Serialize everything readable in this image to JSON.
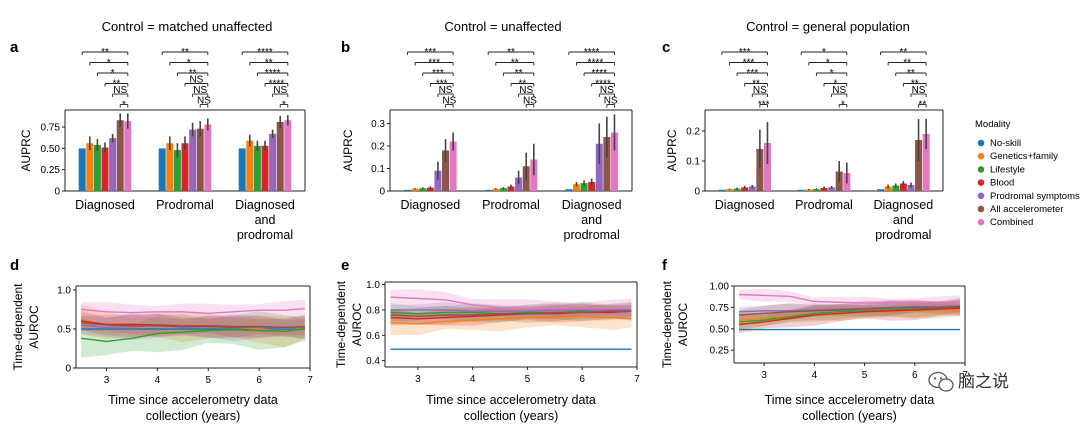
{
  "watermark": "脑之说",
  "chart_data": [
    {
      "panel": "a",
      "type": "bar",
      "title": "Control = matched unaffected",
      "ylabel": "AUPRC",
      "ylim": [
        0,
        0.95
      ],
      "yticks": [
        0,
        0.25,
        0.5,
        0.75
      ],
      "yticklabels": [
        "0",
        "0.25",
        "0.50",
        "0.75"
      ],
      "categories": [
        "Diagnosed",
        "Prodromal",
        "Diagnosed and prodromal"
      ],
      "category_lines": [
        [
          "Diagnosed"
        ],
        [
          "Prodromal"
        ],
        [
          "Diagnosed",
          "and",
          "prodromal"
        ]
      ],
      "series": [
        {
          "name": "No-skill",
          "values": [
            0.5,
            0.5,
            0.5
          ],
          "errors": [
            0,
            0,
            0
          ]
        },
        {
          "name": "Genetics+family",
          "values": [
            0.56,
            0.56,
            0.59
          ],
          "errors": [
            0.08,
            0.08,
            0.07
          ]
        },
        {
          "name": "Lifestyle",
          "values": [
            0.54,
            0.48,
            0.53
          ],
          "errors": [
            0.07,
            0.08,
            0.06
          ]
        },
        {
          "name": "Blood",
          "values": [
            0.51,
            0.56,
            0.53
          ],
          "errors": [
            0.06,
            0.08,
            0.06
          ]
        },
        {
          "name": "Prodromal symptoms",
          "values": [
            0.62,
            0.72,
            0.67
          ],
          "errors": [
            0.05,
            0.08,
            0.05
          ]
        },
        {
          "name": "All accelerometer",
          "values": [
            0.83,
            0.73,
            0.81
          ],
          "errors": [
            0.08,
            0.09,
            0.07
          ]
        },
        {
          "name": "Combined",
          "values": [
            0.82,
            0.78,
            0.83
          ],
          "errors": [
            0.09,
            0.07,
            0.06
          ]
        }
      ],
      "significance": [
        [
          "**",
          "*",
          "*",
          "**",
          "NS",
          "*"
        ],
        [
          "**",
          "*",
          "**",
          "NS",
          "NS",
          "NS"
        ],
        [
          "****",
          "**",
          "****",
          "****",
          "NS",
          "*"
        ]
      ]
    },
    {
      "panel": "b",
      "type": "bar",
      "title": "Control = unaffected",
      "ylabel": "AUPRC",
      "ylim": [
        0,
        0.36
      ],
      "yticks": [
        0,
        0.1,
        0.2,
        0.3
      ],
      "yticklabels": [
        "0",
        "0.1",
        "0.2",
        "0.3"
      ],
      "categories": [
        "Diagnosed",
        "Prodromal",
        "Diagnosed and prodromal"
      ],
      "category_lines": [
        [
          "Diagnosed"
        ],
        [
          "Prodromal"
        ],
        [
          "Diagnosed",
          "and",
          "prodromal"
        ]
      ],
      "series": [
        {
          "name": "No-skill",
          "values": [
            0.005,
            0.005,
            0.008
          ],
          "errors": [
            0,
            0,
            0
          ]
        },
        {
          "name": "Genetics+family",
          "values": [
            0.01,
            0.01,
            0.03
          ],
          "errors": [
            0.003,
            0.003,
            0.01
          ]
        },
        {
          "name": "Lifestyle",
          "values": [
            0.012,
            0.013,
            0.035
          ],
          "errors": [
            0.004,
            0.004,
            0.012
          ]
        },
        {
          "name": "Blood",
          "values": [
            0.015,
            0.02,
            0.04
          ],
          "errors": [
            0.006,
            0.008,
            0.015
          ]
        },
        {
          "name": "Prodromal symptoms",
          "values": [
            0.09,
            0.06,
            0.21
          ],
          "errors": [
            0.04,
            0.03,
            0.09
          ]
        },
        {
          "name": "All accelerometer",
          "values": [
            0.18,
            0.11,
            0.24
          ],
          "errors": [
            0.05,
            0.06,
            0.09
          ]
        },
        {
          "name": "Combined",
          "values": [
            0.22,
            0.14,
            0.26
          ],
          "errors": [
            0.04,
            0.07,
            0.08
          ]
        }
      ],
      "significance": [
        [
          "***",
          "***",
          "***",
          "***",
          "NS",
          "NS"
        ],
        [
          "**",
          "**",
          "**",
          "**",
          "NS",
          "NS"
        ],
        [
          "****",
          "****",
          "****",
          "****",
          "NS",
          "NS"
        ]
      ]
    },
    {
      "panel": "c",
      "type": "bar",
      "title": "Control = general population",
      "ylabel": "AUPRC",
      "ylim": [
        0,
        0.27
      ],
      "yticks": [
        0,
        0.1,
        0.2
      ],
      "yticklabels": [
        "0",
        "0.1",
        "0.2"
      ],
      "categories": [
        "Diagnosed",
        "Prodromal",
        "Diagnosed and prodromal"
      ],
      "category_lines": [
        [
          "Diagnosed"
        ],
        [
          "Prodromal"
        ],
        [
          "Diagnosed",
          "and",
          "prodromal"
        ]
      ],
      "series": [
        {
          "name": "No-skill",
          "values": [
            0.004,
            0.004,
            0.006
          ],
          "errors": [
            0,
            0,
            0
          ]
        },
        {
          "name": "Genetics+family",
          "values": [
            0.006,
            0.005,
            0.015
          ],
          "errors": [
            0.002,
            0.002,
            0.006
          ]
        },
        {
          "name": "Lifestyle",
          "values": [
            0.008,
            0.006,
            0.018
          ],
          "errors": [
            0.003,
            0.003,
            0.007
          ]
        },
        {
          "name": "Blood",
          "values": [
            0.012,
            0.01,
            0.025
          ],
          "errors": [
            0.005,
            0.005,
            0.008
          ]
        },
        {
          "name": "Prodromal symptoms",
          "values": [
            0.015,
            0.012,
            0.02
          ],
          "errors": [
            0.005,
            0.005,
            0.008
          ]
        },
        {
          "name": "All accelerometer",
          "values": [
            0.14,
            0.065,
            0.17
          ],
          "errors": [
            0.065,
            0.035,
            0.07
          ]
        },
        {
          "name": "Combined",
          "values": [
            0.16,
            0.06,
            0.19
          ],
          "errors": [
            0.07,
            0.035,
            0.05
          ]
        }
      ],
      "significance": [
        [
          "***",
          "***",
          "***",
          "**",
          "NS",
          "***"
        ],
        [
          "*",
          "*",
          "*",
          "*",
          "NS",
          "*"
        ],
        [
          "**",
          "**",
          "**",
          "**",
          "NS",
          "**"
        ]
      ]
    },
    {
      "panel": "d",
      "type": "line",
      "xlabel": "Time since accelerometry data collection (years)",
      "xlabel_lines": [
        "Time since accelerometry data",
        "collection (years)"
      ],
      "ylabel": "Time-dependent AUROC",
      "ylabel_lines": [
        "Time-dependent",
        "AUROC"
      ],
      "xlim": [
        2.4,
        7.0
      ],
      "ylim": [
        0,
        1.05
      ],
      "xticks": [
        3,
        4,
        5,
        6,
        7
      ],
      "yticks": [
        0,
        0.5,
        1.0
      ],
      "yticklabels": [
        "0",
        "0.5",
        "1.0"
      ],
      "x": [
        2.5,
        3.0,
        3.5,
        4.0,
        4.5,
        5.0,
        5.5,
        6.0,
        6.5,
        6.9
      ],
      "series": [
        {
          "name": "No-skill",
          "values": [
            0.5,
            0.5,
            0.5,
            0.5,
            0.5,
            0.5,
            0.5,
            0.5,
            0.5,
            0.5
          ],
          "band": 0
        },
        {
          "name": "Genetics+family",
          "values": [
            0.62,
            0.55,
            0.52,
            0.55,
            0.53,
            0.54,
            0.52,
            0.5,
            0.46,
            0.52
          ],
          "band": 0.16
        },
        {
          "name": "Lifestyle",
          "values": [
            0.38,
            0.34,
            0.38,
            0.44,
            0.46,
            0.48,
            0.49,
            0.48,
            0.47,
            0.5
          ],
          "band": 0.2
        },
        {
          "name": "Blood",
          "values": [
            0.6,
            0.56,
            0.56,
            0.55,
            0.54,
            0.54,
            0.53,
            0.53,
            0.52,
            0.52
          ],
          "band": 0.12
        },
        {
          "name": "Prodromal symptoms",
          "values": [
            0.55,
            0.52,
            0.53,
            0.54,
            0.52,
            0.53,
            0.52,
            0.52,
            0.51,
            0.52
          ],
          "band": 0.14
        },
        {
          "name": "All accelerometer",
          "values": [
            0.58,
            0.55,
            0.54,
            0.54,
            0.53,
            0.53,
            0.52,
            0.53,
            0.52,
            0.53
          ],
          "band": 0.12
        },
        {
          "name": "Combined",
          "values": [
            0.75,
            0.72,
            0.71,
            0.72,
            0.72,
            0.7,
            0.72,
            0.74,
            0.74,
            0.76
          ],
          "band": 0.1
        }
      ]
    },
    {
      "panel": "e",
      "type": "line",
      "xlabel": "Time since accelerometry data collection (years)",
      "xlabel_lines": [
        "Time since accelerometry data",
        "collection (years)"
      ],
      "ylabel": "Time-dependent AUROC",
      "ylabel_lines": [
        "Time-dependent",
        "AUROC"
      ],
      "xlim": [
        2.4,
        7.0
      ],
      "ylim": [
        0.35,
        1.02
      ],
      "xticks": [
        3,
        4,
        5,
        6,
        7
      ],
      "yticks": [
        0.4,
        0.6,
        0.8,
        1.0
      ],
      "yticklabels": [
        "0.4",
        "0.6",
        "0.8",
        "1.0"
      ],
      "x": [
        2.5,
        3.0,
        3.5,
        4.0,
        4.5,
        5.0,
        5.5,
        6.0,
        6.5,
        6.9
      ],
      "series": [
        {
          "name": "No-skill",
          "values": [
            0.49,
            0.49,
            0.49,
            0.49,
            0.49,
            0.49,
            0.49,
            0.49,
            0.49,
            0.49
          ],
          "band": 0
        },
        {
          "name": "Genetics+family",
          "values": [
            0.7,
            0.69,
            0.71,
            0.72,
            0.73,
            0.74,
            0.74,
            0.75,
            0.74,
            0.73
          ],
          "band": 0.08
        },
        {
          "name": "Lifestyle",
          "values": [
            0.78,
            0.77,
            0.78,
            0.78,
            0.77,
            0.78,
            0.78,
            0.79,
            0.78,
            0.79
          ],
          "band": 0.06
        },
        {
          "name": "Blood",
          "values": [
            0.74,
            0.73,
            0.74,
            0.75,
            0.76,
            0.77,
            0.77,
            0.78,
            0.78,
            0.79
          ],
          "band": 0.06
        },
        {
          "name": "Prodromal symptoms",
          "values": [
            0.8,
            0.8,
            0.8,
            0.79,
            0.79,
            0.79,
            0.8,
            0.8,
            0.8,
            0.8
          ],
          "band": 0.05
        },
        {
          "name": "All accelerometer",
          "values": [
            0.76,
            0.75,
            0.76,
            0.76,
            0.77,
            0.77,
            0.78,
            0.78,
            0.79,
            0.79
          ],
          "band": 0.06
        },
        {
          "name": "Combined",
          "values": [
            0.9,
            0.89,
            0.88,
            0.84,
            0.82,
            0.81,
            0.81,
            0.81,
            0.81,
            0.82
          ],
          "band": 0.06
        }
      ]
    },
    {
      "panel": "f",
      "type": "line",
      "xlabel": "Time since accelerometry data collection (years)",
      "xlabel_lines": [
        "Time since accelerometry data",
        "collection (years)"
      ],
      "ylabel": "Time-dependent AUROC",
      "ylabel_lines": [
        "Time-dependent",
        "AUROC"
      ],
      "xlim": [
        2.4,
        7.0
      ],
      "ylim": [
        0.1,
        1.0
      ],
      "xticks": [
        3,
        4,
        5,
        6,
        7
      ],
      "yticks": [
        0.25,
        0.5,
        0.75,
        1.0
      ],
      "yticklabels": [
        "0.25",
        "0.50",
        "0.75",
        "1.00"
      ],
      "x": [
        2.5,
        3.0,
        3.5,
        4.0,
        4.5,
        5.0,
        5.5,
        6.0,
        6.5,
        6.9
      ],
      "series": [
        {
          "name": "No-skill",
          "values": [
            0.49,
            0.49,
            0.49,
            0.49,
            0.49,
            0.49,
            0.49,
            0.49,
            0.49,
            0.49
          ],
          "band": 0
        },
        {
          "name": "Genetics+family",
          "values": [
            0.6,
            0.62,
            0.65,
            0.68,
            0.69,
            0.7,
            0.7,
            0.71,
            0.72,
            0.72
          ],
          "band": 0.08
        },
        {
          "name": "Lifestyle",
          "values": [
            0.58,
            0.6,
            0.64,
            0.68,
            0.7,
            0.71,
            0.72,
            0.73,
            0.74,
            0.75
          ],
          "band": 0.08
        },
        {
          "name": "Blood",
          "values": [
            0.55,
            0.58,
            0.62,
            0.66,
            0.68,
            0.7,
            0.71,
            0.72,
            0.73,
            0.74
          ],
          "band": 0.1
        },
        {
          "name": "Prodromal symptoms",
          "values": [
            0.7,
            0.71,
            0.71,
            0.72,
            0.73,
            0.74,
            0.75,
            0.76,
            0.76,
            0.77
          ],
          "band": 0.07
        },
        {
          "name": "All accelerometer",
          "values": [
            0.66,
            0.68,
            0.7,
            0.71,
            0.72,
            0.73,
            0.74,
            0.75,
            0.75,
            0.76
          ],
          "band": 0.08
        },
        {
          "name": "Combined",
          "values": [
            0.9,
            0.89,
            0.88,
            0.82,
            0.81,
            0.8,
            0.8,
            0.81,
            0.81,
            0.82
          ],
          "band": 0.06
        }
      ]
    }
  ],
  "legend": {
    "title": "Modality",
    "entries": [
      "No-skill",
      "Genetics+family",
      "Lifestyle",
      "Blood",
      "Prodromal symptoms",
      "All accelerometer",
      "Combined"
    ],
    "colors": [
      "#1f77b4",
      "#ff7f0e",
      "#2ca02c",
      "#d62728",
      "#9467bd",
      "#8c564b",
      "#e377c2"
    ]
  }
}
